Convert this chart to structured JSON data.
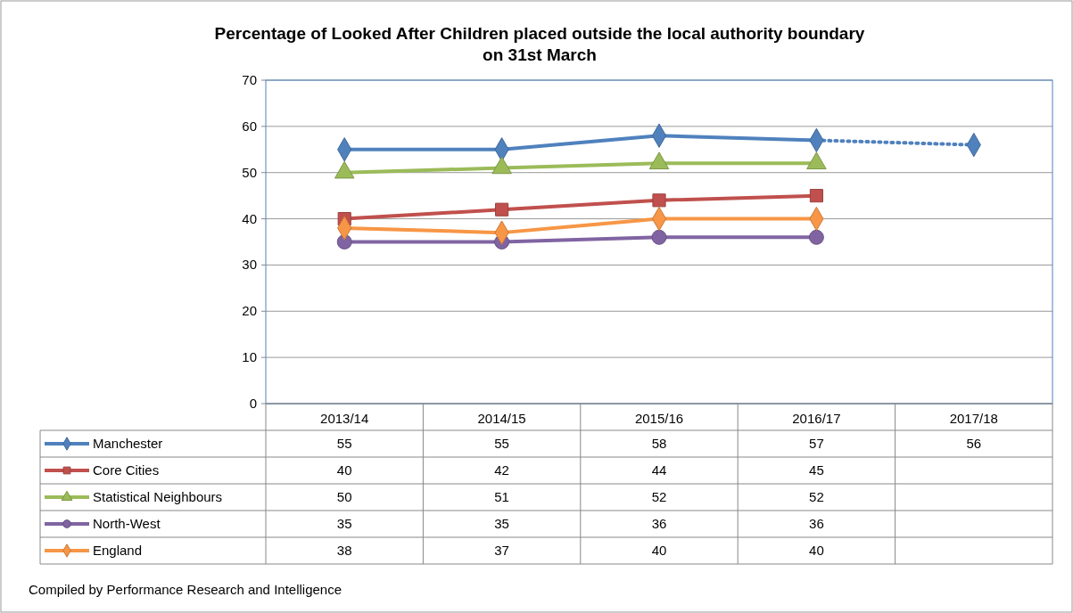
{
  "chart_data": {
    "type": "line",
    "title": "Percentage of Looked After Children placed outside the local authority boundary\non 31st March",
    "categories": [
      "2013/14",
      "2014/15",
      "2015/16",
      "2016/17",
      "2017/18"
    ],
    "ylim": [
      0,
      70
    ],
    "yticks": [
      0,
      10,
      20,
      30,
      40,
      50,
      60,
      70
    ],
    "grid": "y",
    "legend": "bottom left",
    "data_labels": true,
    "line_style": "solid",
    "series": [
      {
        "name": "Manchester",
        "color": "#4f81bd",
        "marker": "diamond",
        "line_style": [
          "solid",
          "solid",
          "solid",
          "dotted"
        ],
        "values": [
          55,
          55,
          58,
          57,
          56
        ]
      },
      {
        "name": "Core Cities",
        "color": "#c0504d",
        "marker": "square",
        "values": [
          40,
          42,
          44,
          45,
          null
        ]
      },
      {
        "name": "Statistical Neighbours",
        "color": "#9bbb59",
        "marker": "triangle",
        "values": [
          50,
          51,
          52,
          52,
          null
        ]
      },
      {
        "name": "North-West",
        "color": "#8064a2",
        "marker": "circle",
        "values": [
          35,
          35,
          36,
          36,
          null
        ]
      },
      {
        "name": "England",
        "color": "#f79646",
        "marker": "diamond",
        "values": [
          38,
          37,
          40,
          40,
          null
        ]
      }
    ],
    "annotations": [
      "Compiled  by Performance Research and Intelligence"
    ]
  }
}
